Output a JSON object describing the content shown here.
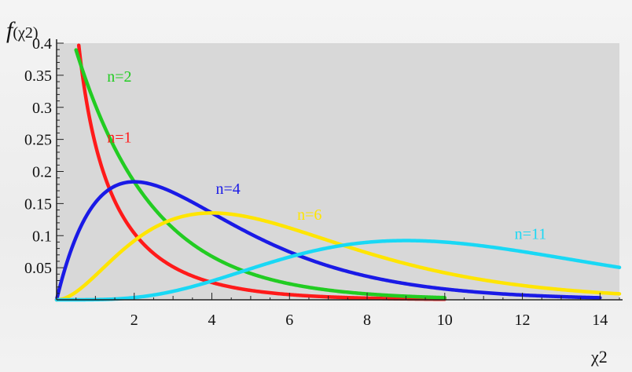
{
  "chart_data": {
    "type": "line",
    "title": "",
    "ylabel": "f(χ2)",
    "xlabel": "χ2",
    "xlim": [
      0,
      14.5
    ],
    "ylim": [
      0,
      0.4
    ],
    "xticks": [
      2,
      4,
      6,
      8,
      10,
      12,
      14
    ],
    "yticks": [
      0.05,
      0.1,
      0.15,
      0.2,
      0.25,
      0.3,
      0.35,
      0.4
    ],
    "xtick_labels": [
      "2",
      "4",
      "6",
      "8",
      "10",
      "12",
      "14"
    ],
    "ytick_labels": [
      "0.05",
      "0.1",
      "0.15",
      "0.2",
      "0.25",
      "0.3",
      "0.35",
      "0.4"
    ],
    "grid": false,
    "legend": "inline-labels",
    "series": [
      {
        "name": "n=1",
        "dof": 1,
        "color": "#ff1a1a",
        "x_range": [
          0.5,
          10
        ],
        "points": [
          [
            0.6,
            0.386
          ],
          [
            0.8,
            0.288
          ],
          [
            1,
            0.242
          ],
          [
            1.5,
            0.158
          ],
          [
            2,
            0.104
          ],
          [
            3,
            0.051
          ],
          [
            4,
            0.027
          ],
          [
            5,
            0.015
          ],
          [
            6,
            0.008
          ],
          [
            7,
            0.005
          ],
          [
            8,
            0.003
          ],
          [
            9,
            0.001
          ],
          [
            10,
            0.001
          ]
        ]
      },
      {
        "name": "n=2",
        "dof": 2,
        "color": "#22cc22",
        "x_range": [
          0.5,
          10
        ],
        "points": [
          [
            0.5,
            0.389
          ],
          [
            1,
            0.303
          ],
          [
            1.5,
            0.236
          ],
          [
            2,
            0.184
          ],
          [
            3,
            0.112
          ],
          [
            4,
            0.068
          ],
          [
            5,
            0.041
          ],
          [
            6,
            0.025
          ],
          [
            7,
            0.015
          ],
          [
            8,
            0.009
          ],
          [
            9,
            0.006
          ],
          [
            10,
            0.003
          ]
        ]
      },
      {
        "name": "n=4",
        "dof": 4,
        "color": "#1a1ae6",
        "x_range": [
          0,
          14
        ],
        "points": [
          [
            0,
            0
          ],
          [
            0.5,
            0.097
          ],
          [
            1,
            0.152
          ],
          [
            2,
            0.184
          ],
          [
            3,
            0.167
          ],
          [
            4,
            0.135
          ],
          [
            5,
            0.103
          ],
          [
            6,
            0.075
          ],
          [
            8,
            0.037
          ],
          [
            10,
            0.017
          ],
          [
            12,
            0.007
          ],
          [
            14,
            0.003
          ]
        ]
      },
      {
        "name": "n=6",
        "dof": 6,
        "color": "#ffe500",
        "x_range": [
          0,
          14.5
        ],
        "points": [
          [
            0,
            0
          ],
          [
            1,
            0.038
          ],
          [
            2,
            0.092
          ],
          [
            3,
            0.126
          ],
          [
            4,
            0.135
          ],
          [
            5,
            0.128
          ],
          [
            6,
            0.112
          ],
          [
            8,
            0.073
          ],
          [
            10,
            0.042
          ],
          [
            12,
            0.022
          ],
          [
            14,
            0.011
          ]
        ]
      },
      {
        "name": "n=11",
        "dof": 11,
        "color": "#19d8f5",
        "x_range": [
          0,
          14.5
        ],
        "points": [
          [
            0,
            0
          ],
          [
            2,
            0.002
          ],
          [
            4,
            0.023
          ],
          [
            6,
            0.062
          ],
          [
            8,
            0.09
          ],
          [
            9,
            0.092
          ],
          [
            10,
            0.088
          ],
          [
            12,
            0.07
          ],
          [
            14,
            0.05
          ]
        ]
      }
    ]
  }
}
